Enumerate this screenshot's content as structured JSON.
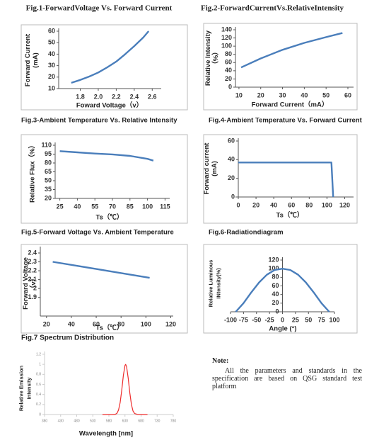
{
  "chart_data": [
    {
      "type": "line",
      "title": "Fig.1-ForwardVoltage Vs. Forward Current",
      "x_label": "Foward Voltage（v）",
      "y_label": [
        "Forward Current",
        "(mA)"
      ],
      "x": [
        1.7,
        1.8,
        1.9,
        2.0,
        2.1,
        2.2,
        2.3,
        2.4,
        2.5,
        2.56
      ],
      "values": [
        15,
        17.5,
        20.5,
        24,
        28.5,
        33.5,
        40,
        47,
        54.5,
        60
      ],
      "color": "#4a7ebb",
      "xlim": [
        1.56,
        2.7
      ],
      "ylim": [
        10,
        60
      ],
      "xticks": [
        1.8,
        {
          "value": 2,
          "label": "2.0"
        },
        2.2,
        2.4,
        2.6
      ],
      "yticks": [
        10,
        20,
        30,
        40,
        50,
        60
      ]
    },
    {
      "type": "line",
      "title": "Fig.2-ForwardCurrentVs.RelativeIntensity",
      "x_label": "Forward Current（mA）",
      "y_label": [
        "Relative Intensity",
        "（%）"
      ],
      "x": [
        11,
        20,
        30,
        40,
        50,
        57.5
      ],
      "values": [
        48,
        70,
        91,
        108,
        122,
        132
      ],
      "color": "#4a7ebb",
      "xlim": [
        8.4,
        62.6
      ],
      "ylim": [
        0,
        140
      ],
      "xticks": [
        10,
        20,
        30,
        40,
        50,
        60
      ],
      "yticks": [
        0,
        20,
        40,
        60,
        80,
        100,
        120,
        140
      ]
    },
    {
      "type": "line",
      "title": "Fig.3-Ambient Temperature Vs. Relative Intensity",
      "x_label": "Ts（℃）",
      "y_label": [
        "Relative Flux（%）"
      ],
      "x": [
        25,
        40,
        55,
        70,
        85,
        100,
        105
      ],
      "values": [
        100,
        98,
        96,
        94.5,
        92,
        87,
        84
      ],
      "color": "#4a7ebb",
      "xlim": [
        21,
        119
      ],
      "ylim": [
        20,
        110
      ],
      "xticks": [
        25,
        40,
        55,
        70,
        85,
        100,
        115
      ],
      "yticks": [
        20,
        35,
        50,
        65,
        80,
        95,
        110
      ]
    },
    {
      "type": "line",
      "title": "Fig.4-Ambient Temperature Vs. Forward Current",
      "x_label": "Ts（℃）",
      "y_label": [
        "Forward current",
        "(mA)"
      ],
      "x": [
        0,
        105,
        107
      ],
      "values": [
        37,
        37,
        0
      ],
      "color": "#4a7ebb",
      "xlim": [
        -3.2,
        130
      ],
      "ylim": [
        0,
        60
      ],
      "xticks": [
        0,
        20,
        40,
        60,
        80,
        100,
        120
      ],
      "yticks": [
        0,
        20,
        40,
        60
      ]
    },
    {
      "type": "line",
      "title": "Fig.5-Forward Voltage Vs. Ambient Temperature",
      "x_label": "Ts（℃）",
      "y_label": [
        "Forward Voltage",
        "（v）"
      ],
      "x": [
        25,
        60,
        103
      ],
      "values": [
        2.3,
        2.22,
        2.12
      ],
      "color": "#4a7ebb",
      "xlim": [
        15,
        122
      ],
      "ylim": [
        1.69,
        2.44
      ],
      "xticks": [
        20,
        40,
        60,
        80,
        100,
        120
      ],
      "yticks": [
        1.9,
        2,
        2.1,
        2.2,
        2.3,
        2.4
      ]
    },
    {
      "type": "line",
      "title": "Fig.6-Radiationdiagram",
      "x_label": "Angle (°)",
      "y_label": [
        "Relative Luminous",
        "INtensity(%)"
      ],
      "x": [
        -90,
        -75,
        -60,
        -45,
        -30,
        -15,
        0,
        15,
        30,
        45,
        60,
        75,
        90
      ],
      "values": [
        0,
        20,
        45,
        68,
        86,
        97,
        100,
        97,
        86,
        68,
        45,
        20,
        0
      ],
      "color": "#4a7ebb",
      "xlim": [
        -100,
        100
      ],
      "ylim": [
        0,
        120
      ],
      "xticks": [
        -100,
        -75,
        -50,
        -25,
        0,
        25,
        50,
        75,
        100
      ],
      "yticks": [
        0,
        20,
        40,
        60,
        80,
        100,
        120
      ]
    },
    {
      "type": "line",
      "title": "Fig.7 Spectrum Distribution",
      "x_label": "Wavelength [nm]",
      "y_label": [
        "Relative Emission",
        "Intensity"
      ],
      "x": [
        560,
        590,
        600,
        605,
        610,
        615,
        620,
        625,
        630,
        632,
        635,
        640,
        645,
        650,
        655,
        660,
        670,
        700
      ],
      "values": [
        0,
        0,
        0.006,
        0.026,
        0.089,
        0.236,
        0.487,
        0.783,
        0.98,
        1,
        0.956,
        0.726,
        0.43,
        0.198,
        0.071,
        0.02,
        0.001,
        0
      ],
      "color": "#ee2c2c",
      "xlim": [
        380,
        780
      ],
      "ylim": [
        0,
        1.2
      ],
      "xticks": [
        380,
        430,
        480,
        530,
        580,
        630,
        680,
        730,
        780
      ],
      "yticks": [
        0,
        0.2,
        0.4,
        0.6,
        0.8,
        1,
        1.2
      ]
    }
  ],
  "note": {
    "title": "Note:",
    "text": "All the parameters and standards in the specification are based on QSG standard test platform"
  }
}
